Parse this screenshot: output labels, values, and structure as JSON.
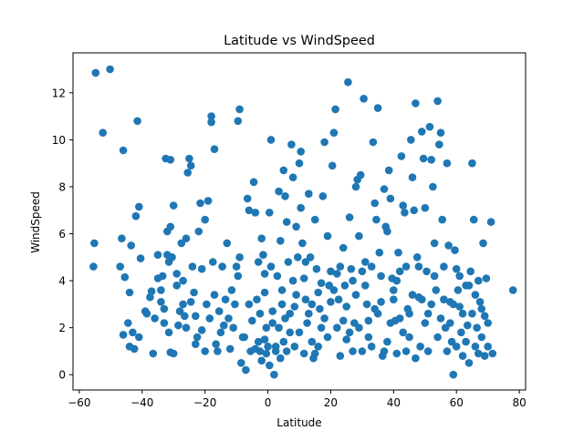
{
  "chart_data": {
    "type": "scatter",
    "title": "Latitude vs WindSpeed",
    "xlabel": "Latitude",
    "ylabel": "WindSpeed",
    "xlim": [
      -62,
      82
    ],
    "ylim": [
      -0.65,
      13.7
    ],
    "xticks": [
      -60,
      -40,
      -20,
      0,
      20,
      40,
      60,
      80
    ],
    "yticks": [
      0,
      2,
      4,
      6,
      8,
      10,
      12
    ],
    "grid": false,
    "marker_color": "#1f77b4",
    "points": [
      [
        -54.8,
        12.85
      ],
      [
        -50.2,
        13.0
      ],
      [
        -52.5,
        10.3
      ],
      [
        -41.5,
        10.8
      ],
      [
        -46.0,
        9.55
      ],
      [
        -55.2,
        5.6
      ],
      [
        -55.5,
        4.6
      ],
      [
        -47.0,
        4.6
      ],
      [
        -46.5,
        5.8
      ],
      [
        -45.5,
        4.15
      ],
      [
        -43.5,
        5.5
      ],
      [
        -42.0,
        6.75
      ],
      [
        -41.0,
        7.15
      ],
      [
        -40.5,
        4.95
      ],
      [
        -44.0,
        3.5
      ],
      [
        -44.5,
        2.2
      ],
      [
        -43.0,
        1.8
      ],
      [
        -44.0,
        1.2
      ],
      [
        -46.0,
        1.7
      ],
      [
        -41.0,
        1.6
      ],
      [
        -38.5,
        2.6
      ],
      [
        -37.5,
        3.3
      ],
      [
        -37.0,
        3.55
      ],
      [
        -36.0,
        2.4
      ],
      [
        -35.0,
        5.1
      ],
      [
        -35.0,
        4.1
      ],
      [
        -34.0,
        3.6
      ],
      [
        -34.0,
        3.1
      ],
      [
        -33.0,
        2.8
      ],
      [
        -33.0,
        2.2
      ],
      [
        -32.5,
        9.2
      ],
      [
        -31.0,
        9.15
      ],
      [
        -32.0,
        6.1
      ],
      [
        -31.0,
        6.3
      ],
      [
        -32.0,
        5.1
      ],
      [
        -31.5,
        4.8
      ],
      [
        -30.5,
        5.0
      ],
      [
        -30.0,
        7.2
      ],
      [
        -31.5,
        1.8
      ],
      [
        -31.0,
        0.95
      ],
      [
        -30.0,
        0.9
      ],
      [
        -29.0,
        4.3
      ],
      [
        -29.0,
        3.8
      ],
      [
        -28.5,
        2.1
      ],
      [
        -27.5,
        5.6
      ],
      [
        -27.0,
        4.0
      ],
      [
        -27.0,
        3.0
      ],
      [
        -26.5,
        2.5
      ],
      [
        -26.0,
        2.0
      ],
      [
        -25.5,
        8.6
      ],
      [
        -25.0,
        9.2
      ],
      [
        -24.5,
        8.9
      ],
      [
        -24.0,
        4.6
      ],
      [
        -23.5,
        3.5
      ],
      [
        -23.0,
        2.5
      ],
      [
        -23.0,
        1.3
      ],
      [
        -22.0,
        6.1
      ],
      [
        -21.5,
        7.3
      ],
      [
        -21.0,
        4.5
      ],
      [
        -21.0,
        1.9
      ],
      [
        -20.0,
        6.6
      ],
      [
        -20.0,
        1.0
      ],
      [
        -19.0,
        7.4
      ],
      [
        -18.5,
        2.4
      ],
      [
        -18.0,
        11.0
      ],
      [
        -18.0,
        10.75
      ],
      [
        -17.5,
        4.8
      ],
      [
        -17.0,
        9.6
      ],
      [
        -17.0,
        3.4
      ],
      [
        -16.0,
        1.0
      ],
      [
        -15.5,
        2.7
      ],
      [
        -15.0,
        1.8
      ],
      [
        -14.5,
        4.6
      ],
      [
        -13.5,
        3.2
      ],
      [
        -13.0,
        5.6
      ],
      [
        -12.5,
        2.4
      ],
      [
        -12.0,
        1.1
      ],
      [
        -11.0,
        2.0
      ],
      [
        -10.5,
        3.0
      ],
      [
        -10.0,
        4.6
      ],
      [
        -9.0,
        11.3
      ],
      [
        -9.5,
        10.8
      ],
      [
        -9.0,
        5.0
      ],
      [
        -8.5,
        0.5
      ],
      [
        -8.0,
        1.6
      ],
      [
        -7.0,
        0.2
      ],
      [
        -6.5,
        7.5
      ],
      [
        -6.0,
        7.0
      ],
      [
        -5.5,
        1.0
      ],
      [
        -5.0,
        2.3
      ],
      [
        -4.5,
        8.2
      ],
      [
        -4.0,
        6.9
      ],
      [
        -3.5,
        3.2
      ],
      [
        -3.0,
        1.4
      ],
      [
        -2.5,
        1.0
      ],
      [
        -2.0,
        5.8
      ],
      [
        -1.5,
        5.1
      ],
      [
        -1.0,
        4.3
      ],
      [
        -0.5,
        2.0
      ],
      [
        0.0,
        1.2
      ],
      [
        -1.0,
        3.5
      ],
      [
        -0.5,
        0.9
      ],
      [
        0.5,
        6.9
      ],
      [
        1.0,
        10.0
      ],
      [
        1.0,
        4.6
      ],
      [
        1.5,
        2.7
      ],
      [
        2.0,
        0.0
      ],
      [
        2.5,
        1.0
      ],
      [
        3.0,
        4.2
      ],
      [
        3.5,
        7.8
      ],
      [
        4.0,
        5.7
      ],
      [
        4.5,
        3.0
      ],
      [
        5.0,
        8.7
      ],
      [
        5.5,
        7.6
      ],
      [
        5.0,
        1.4
      ],
      [
        6.0,
        6.5
      ],
      [
        6.5,
        4.8
      ],
      [
        7.0,
        1.8
      ],
      [
        7.5,
        9.8
      ],
      [
        8.0,
        8.4
      ],
      [
        8.0,
        4.0
      ],
      [
        8.5,
        2.9
      ],
      [
        9.0,
        6.3
      ],
      [
        9.5,
        5.0
      ],
      [
        10.0,
        9.0
      ],
      [
        10.5,
        9.5
      ],
      [
        10.5,
        7.1
      ],
      [
        11.0,
        5.6
      ],
      [
        11.5,
        4.1
      ],
      [
        12.0,
        3.2
      ],
      [
        12.5,
        2.2
      ],
      [
        13.0,
        7.7
      ],
      [
        13.5,
        5.0
      ],
      [
        14.0,
        1.4
      ],
      [
        14.5,
        0.7
      ],
      [
        15.0,
        6.6
      ],
      [
        15.5,
        4.5
      ],
      [
        16.0,
        3.5
      ],
      [
        16.5,
        2.8
      ],
      [
        17.0,
        2.0
      ],
      [
        17.5,
        7.6
      ],
      [
        18.0,
        9.9
      ],
      [
        19.0,
        5.9
      ],
      [
        19.5,
        3.8
      ],
      [
        20.0,
        3.1
      ],
      [
        20.5,
        8.9
      ],
      [
        21.0,
        10.3
      ],
      [
        21.5,
        11.3
      ],
      [
        22.0,
        4.3
      ],
      [
        22.5,
        3.2
      ],
      [
        23.0,
        4.6
      ],
      [
        24.0,
        2.3
      ],
      [
        24.5,
        3.8
      ],
      [
        25.0,
        1.5
      ],
      [
        25.5,
        12.45
      ],
      [
        26.0,
        6.7
      ],
      [
        26.5,
        4.5
      ],
      [
        27.0,
        1.0
      ],
      [
        27.5,
        2.2
      ],
      [
        28.0,
        8.0
      ],
      [
        28.5,
        8.3
      ],
      [
        29.0,
        5.9
      ],
      [
        29.5,
        8.5
      ],
      [
        30.0,
        1.0
      ],
      [
        30.5,
        11.75
      ],
      [
        31.0,
        4.8
      ],
      [
        31.5,
        3.0
      ],
      [
        32.0,
        2.3
      ],
      [
        33.0,
        4.6
      ],
      [
        33.5,
        9.9
      ],
      [
        34.0,
        7.3
      ],
      [
        34.5,
        6.6
      ],
      [
        35.0,
        11.35
      ],
      [
        35.5,
        5.2
      ],
      [
        36.0,
        3.1
      ],
      [
        36.5,
        0.8
      ],
      [
        37.0,
        7.9
      ],
      [
        37.5,
        6.3
      ],
      [
        38.0,
        6.1
      ],
      [
        38.5,
        8.7
      ],
      [
        39.0,
        7.5
      ],
      [
        39.5,
        4.1
      ],
      [
        40.0,
        3.2
      ],
      [
        40.5,
        2.3
      ],
      [
        41.0,
        0.9
      ],
      [
        41.5,
        5.2
      ],
      [
        42.0,
        4.4
      ],
      [
        42.5,
        9.3
      ],
      [
        43.0,
        7.2
      ],
      [
        43.5,
        6.9
      ],
      [
        44.0,
        4.6
      ],
      [
        44.5,
        2.8
      ],
      [
        45.0,
        1.6
      ],
      [
        45.5,
        10.0
      ],
      [
        46.0,
        8.4
      ],
      [
        46.5,
        7.0
      ],
      [
        47.0,
        11.55
      ],
      [
        47.5,
        5.0
      ],
      [
        48.0,
        3.3
      ],
      [
        48.5,
        1.2
      ],
      [
        49.0,
        10.35
      ],
      [
        49.5,
        9.2
      ],
      [
        50.0,
        7.1
      ],
      [
        50.5,
        4.4
      ],
      [
        51.0,
        2.6
      ],
      [
        51.5,
        10.55
      ],
      [
        52.0,
        9.15
      ],
      [
        52.5,
        8.0
      ],
      [
        53.0,
        5.6
      ],
      [
        53.5,
        3.6
      ],
      [
        54.0,
        11.65
      ],
      [
        54.5,
        9.8
      ],
      [
        55.0,
        10.3
      ],
      [
        55.5,
        6.6
      ],
      [
        56.0,
        4.6
      ],
      [
        56.5,
        2.0
      ],
      [
        57.0,
        9.0
      ],
      [
        57.5,
        5.5
      ],
      [
        58.0,
        3.1
      ],
      [
        58.5,
        1.4
      ],
      [
        59.0,
        0.0
      ],
      [
        59.5,
        5.3
      ],
      [
        60.0,
        4.5
      ],
      [
        60.5,
        3.6
      ],
      [
        61.0,
        2.9
      ],
      [
        61.5,
        1.8
      ],
      [
        62.0,
        0.8
      ],
      [
        63.0,
        3.8
      ],
      [
        63.5,
        2.1
      ],
      [
        64.0,
        0.5
      ],
      [
        64.5,
        4.4
      ],
      [
        65.0,
        9.0
      ],
      [
        65.5,
        6.6
      ],
      [
        66.0,
        3.4
      ],
      [
        66.5,
        2.0
      ],
      [
        67.0,
        0.9
      ],
      [
        67.5,
        3.1
      ],
      [
        68.0,
        1.6
      ],
      [
        68.5,
        5.6
      ],
      [
        69.0,
        2.5
      ],
      [
        69.5,
        4.1
      ],
      [
        70.0,
        1.2
      ],
      [
        71.0,
        6.5
      ],
      [
        71.5,
        0.9
      ],
      [
        78.0,
        3.6
      ],
      [
        2.5,
        1.2
      ],
      [
        3.5,
        2.0
      ],
      [
        4.5,
        3.6
      ],
      [
        6.0,
        1.0
      ],
      [
        7.0,
        2.6
      ],
      [
        9.0,
        3.4
      ],
      [
        10.0,
        1.8
      ],
      [
        12.0,
        4.8
      ],
      [
        14.0,
        3.0
      ],
      [
        16.0,
        1.2
      ],
      [
        18.0,
        2.4
      ],
      [
        20.0,
        4.4
      ],
      [
        22.0,
        2.0
      ],
      [
        24.0,
        5.4
      ],
      [
        26.0,
        1.8
      ],
      [
        28.0,
        3.4
      ],
      [
        30.0,
        4.4
      ],
      [
        32.0,
        1.6
      ],
      [
        34.0,
        2.8
      ],
      [
        36.0,
        4.2
      ],
      [
        38.0,
        1.4
      ],
      [
        40.0,
        3.6
      ],
      [
        42.0,
        2.4
      ],
      [
        44.0,
        1.0
      ],
      [
        46.0,
        3.4
      ],
      [
        48.0,
        4.6
      ],
      [
        50.0,
        2.2
      ],
      [
        52.0,
        3.0
      ],
      [
        54.0,
        1.6
      ],
      [
        56.0,
        3.2
      ],
      [
        58.0,
        2.2
      ],
      [
        60.0,
        1.2
      ],
      [
        62.0,
        2.6
      ],
      [
        64.0,
        3.8
      ],
      [
        66.0,
        1.2
      ],
      [
        68.0,
        2.8
      ],
      [
        70.0,
        2.2
      ],
      [
        -2.0,
        0.6
      ],
      [
        -1.0,
        1.5
      ],
      [
        0.5,
        0.4
      ],
      [
        1.5,
        2.2
      ],
      [
        4.0,
        0.7
      ],
      [
        5.5,
        2.4
      ],
      [
        8.5,
        1.2
      ],
      [
        11.5,
        0.9
      ],
      [
        13.0,
        2.6
      ],
      [
        15.0,
        0.9
      ],
      [
        17.0,
        3.9
      ],
      [
        19.0,
        1.6
      ],
      [
        21.0,
        3.6
      ],
      [
        23.0,
        0.8
      ],
      [
        25.0,
        2.9
      ],
      [
        27.0,
        4.0
      ],
      [
        29.0,
        2.0
      ],
      [
        31.0,
        3.8
      ],
      [
        33.0,
        1.2
      ],
      [
        35.0,
        2.6
      ],
      [
        37.0,
        1.0
      ],
      [
        39.0,
        2.2
      ],
      [
        41.0,
        4.0
      ],
      [
        43.0,
        1.8
      ],
      [
        45.0,
        2.6
      ],
      [
        47.0,
        0.7
      ],
      [
        49.0,
        3.2
      ],
      [
        51.0,
        1.0
      ],
      [
        53.0,
        4.2
      ],
      [
        55.0,
        2.4
      ],
      [
        57.0,
        1.0
      ],
      [
        59.0,
        3.0
      ],
      [
        61.0,
        4.2
      ],
      [
        63.0,
        1.4
      ],
      [
        65.0,
        2.6
      ],
      [
        67.0,
        4.0
      ],
      [
        69.0,
        0.8
      ],
      [
        -3.0,
        4.8
      ],
      [
        -7.5,
        1.6
      ],
      [
        -11.5,
        3.6
      ],
      [
        -14.0,
        2.1
      ],
      [
        -19.5,
        3.0
      ],
      [
        -22.5,
        1.6
      ],
      [
        -24.5,
        3.1
      ],
      [
        -28.0,
        2.7
      ],
      [
        -33.5,
        4.2
      ],
      [
        -36.5,
        0.9
      ],
      [
        -39.0,
        2.7
      ],
      [
        -42.5,
        1.1
      ],
      [
        -26.0,
        5.8
      ],
      [
        -16.5,
        1.3
      ],
      [
        -6.0,
        3.0
      ],
      [
        -9.5,
        4.2
      ],
      [
        -4.0,
        1.1
      ],
      [
        -2.5,
        2.6
      ]
    ]
  }
}
